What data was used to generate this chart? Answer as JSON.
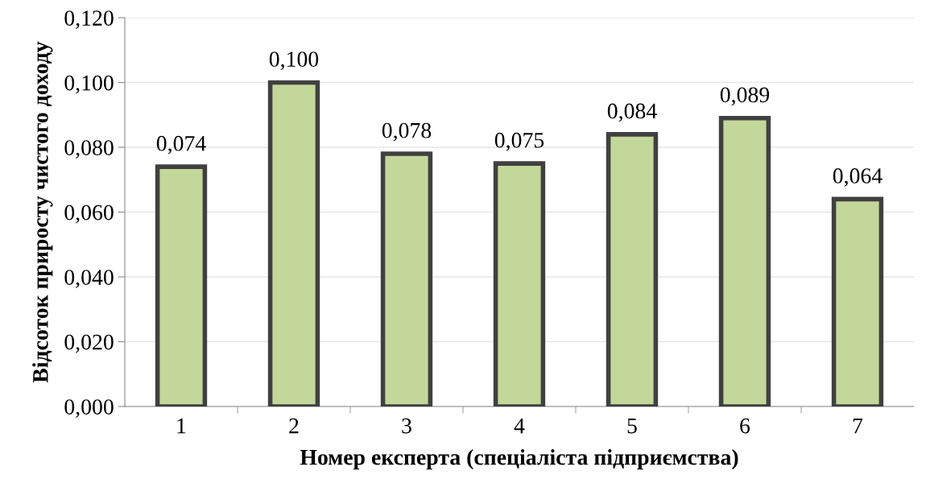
{
  "chart_data": {
    "type": "bar",
    "xlabel": "Номер експерта (спеціаліста підприємства)",
    "ylabel": "Відсоток приросту чистого доходу",
    "categories": [
      "1",
      "2",
      "3",
      "4",
      "5",
      "6",
      "7"
    ],
    "values": [
      0.074,
      0.1,
      0.078,
      0.075,
      0.084,
      0.089,
      0.064
    ],
    "value_labels": [
      "0,074",
      "0,100",
      "0,078",
      "0,075",
      "0,084",
      "0,089",
      "0,064"
    ],
    "color": "#c4d79b",
    "ylim": [
      0,
      0.12
    ],
    "yticks": [
      {
        "value": 0,
        "label": "0,000"
      },
      {
        "value": 0.02,
        "label": "0,020"
      },
      {
        "value": 0.04,
        "label": "0,040"
      },
      {
        "value": 0.06,
        "label": "0,060"
      },
      {
        "value": 0.08,
        "label": "0,080"
      },
      {
        "value": 0.1,
        "label": "0,100"
      },
      {
        "value": 0.12,
        "label": "0,120"
      }
    ],
    "grid": "y",
    "legend": false
  }
}
